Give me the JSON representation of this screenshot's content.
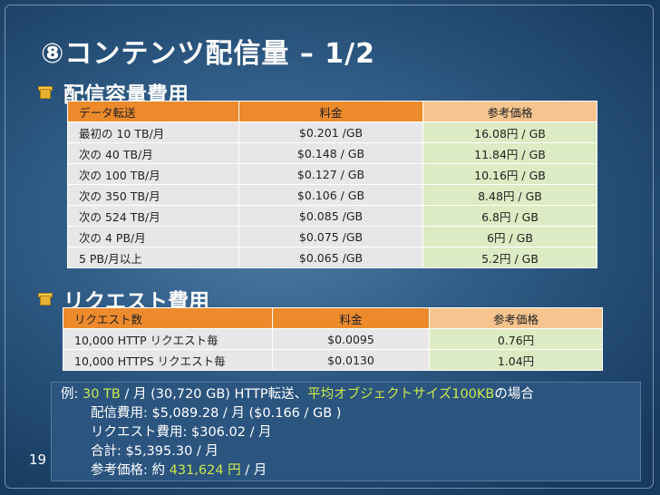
{
  "title": "⑧コンテンツ配信量 – 1/2",
  "section1": {
    "heading": "配信容量費用",
    "headers": [
      "データ転送",
      "料金",
      "参考価格"
    ],
    "rows": [
      [
        "最初の 10 TB/月",
        "$0.201 /GB",
        "16.08円 / GB"
      ],
      [
        "次の 40 TB/月",
        "$0.148 / GB",
        "11.84円 / GB"
      ],
      [
        "次の 100 TB/月",
        "$0.127 / GB",
        "10.16円 / GB"
      ],
      [
        "次の 350 TB/月",
        "$0.106 / GB",
        "8.48円 / GB"
      ],
      [
        "次の 524 TB/月",
        "$0.085 /GB",
        "6.8円 / GB"
      ],
      [
        "次の 4 PB/月",
        "$0.075 /GB",
        "6円 / GB"
      ],
      [
        "5 PB/月以上",
        "$0.065 /GB",
        "5.2円 / GB"
      ]
    ]
  },
  "section2": {
    "heading": "リクエスト費用",
    "headers": [
      "リクエスト数",
      "料金",
      "参考価格"
    ],
    "rows": [
      [
        "10,000 HTTP リクエスト毎",
        "$0.0095",
        "0.76円"
      ],
      [
        "10,000 HTTPS リクエスト毎",
        "$0.0130",
        "1.04円"
      ]
    ]
  },
  "example": {
    "prefix": "例: ",
    "volume": "30 TB",
    "mid": " / 月 (30,720 GB) HTTP転送、",
    "condition": "平均オブジェクトサイズ100KB",
    "suffix": "の場合",
    "delivery": "配信費用: $5,089.28 / 月 ($0.166 / GB )",
    "request": "リクエスト費用: $306.02 / 月",
    "total": "合計: $5,395.30 / 月",
    "ref_prefix": "参考価格: 約 ",
    "ref_value": "431,624 円",
    "ref_suffix": " / 月"
  },
  "page_number": "19",
  "colors": {
    "header_orange": "#ec8a2c",
    "header_light_orange": "#f6c58f",
    "cell_gray": "#e7e7e7",
    "cell_green": "#dcebc3",
    "highlight": "#c9e84a"
  },
  "icons": [
    "box-bullet-icon"
  ]
}
